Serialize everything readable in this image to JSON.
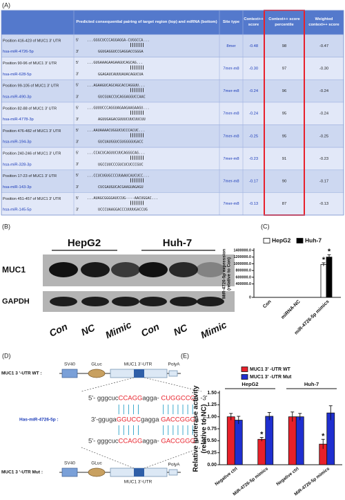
{
  "panel_labels": [
    "(A)",
    "(B)",
    "(C)",
    "(D)",
    "(E)"
  ],
  "table": {
    "header": [
      "Predicted consequential pairing of target region (top) and miRNA (bottom)",
      "Site type",
      "Context++ score",
      "Context++ score percentile",
      "Weighted context++ score"
    ],
    "prime5": "5'",
    "prime3": "3'",
    "rows": [
      {
        "target": "Position 416-423 of MUC1 3' UTR",
        "mirna": "hsa-miR-4726-5p",
        "target_seq": "...GGGCUCCCAGGAGGA-CUGGCCA...",
        "mirna_seq": "GGUGAGGUCCGAGGACCGGGA",
        "site_type": "8mer",
        "context_score": "-0.48",
        "percentile": 98,
        "weighted_score": "-0.47"
      },
      {
        "target": "Position 90-96 of MUC1 3' UTR",
        "mirna": "hsa-miR-628-5p",
        "target_seq": "...GUGAAAGAAGAAGUCAGCAG...",
        "mirna_seq": "GGAGAUCAUUUAUACAGUCUA",
        "site_type": "7mer-m8",
        "context_score": "-0.30",
        "percentile": 97,
        "weighted_score": "-0.30"
      },
      {
        "target": "Position 99-105 of MUC1 3' UTR",
        "mirna": "hsa-miR-490-3p",
        "target_seq": "...AGAAGUCAGCAGCACCAGGUU...",
        "mirna_seq": "GUCGUACCUCAGGAGGUCCAAC",
        "site_type": "7mer-m8",
        "context_score": "-0.24",
        "percentile": 96,
        "weighted_score": "-0.24"
      },
      {
        "target": "Position 82-88 of MUC1 3' UTR",
        "mirna": "hsa-miR-4778-3p",
        "target_seq": "...GUUUCCCAGGUAGAAGAAGAAGU...",
        "mirna_seq": "AGUUGAGACGUUUCUUCUUCUU",
        "site_type": "7mer-m8",
        "context_score": "-0.24",
        "percentile": 95,
        "weighted_score": "-0.24"
      },
      {
        "target": "Position 476-482 of MUC1 3' UTR",
        "mirna": "hsa-miR-194-3p",
        "target_seq": "...AAUAAAACUGGUCUCCCACUC...",
        "mirna_seq": "GUCUAUGGUCGUGGGGUGACC",
        "site_type": "7mer-m8",
        "context_score": "-0.25",
        "percentile": 95,
        "weighted_score": "-0.25"
      },
      {
        "target": "Position 240-246 of MUC1 3' UTR",
        "mirna": "hsa-miR-328-3p",
        "target_seq": "...CCACUCAGUUCUUCAGGGCAG...",
        "mirna_seq": "UGCCUUCCCGUCUCUCCCGUC",
        "site_type": "7mer-m8",
        "context_score": "-0.23",
        "percentile": 91,
        "weighted_score": "-0.23"
      },
      {
        "target": "Position 17-23 of MUC1 3' UTR",
        "mirna": "hsa-miR-143-3p",
        "target_seq": "...CCUCUGUGCCCUUAAUCAUCUCC...",
        "mirna_seq": "CUCGAUGUCACGAAGUAGAGU",
        "site_type": "7mer-m8",
        "context_score": "-0.17",
        "percentile": 90,
        "weighted_score": "-0.17"
      },
      {
        "target": "Position 451-457 of MUC1 3' UTR",
        "mirna": "hsa-miR-145-5p",
        "target_seq": "...AUAGCGGGGAUCCUG----AACUGGAC...",
        "mirna_seq": "UCCCUAAGGACCCUUUUGACCUG",
        "site_type": "7mer-m8",
        "context_score": "-0.13",
        "percentile": 87,
        "weighted_score": "-0.13"
      }
    ]
  },
  "blot": {
    "cell_lines": [
      "HepG2",
      "Huh-7"
    ],
    "proteins": [
      "MUC1",
      "GAPDH"
    ],
    "lanes": [
      "Con",
      "NC",
      "Mimic",
      "Con",
      "NC",
      "Mimic"
    ]
  },
  "chart_data": [
    {
      "type": "bar",
      "y_label": [
        "MiR-4726-5p expression",
        "(relative to Con)"
      ],
      "categories": [
        "Con",
        "miRNA-NC",
        "miR-4726-5p mimics"
      ],
      "series": [
        {
          "name": "HepG2",
          "color": "#ffffff",
          "values": [
            1,
            1.5,
            980000
          ],
          "errors": [
            0.1,
            0.3,
            50000
          ],
          "significance": [
            null,
            null,
            "*"
          ]
        },
        {
          "name": "Huh-7",
          "color": "#000000",
          "values": [
            1,
            2,
            1200000
          ],
          "errors": [
            0.1,
            0.3,
            70000
          ],
          "significance": [
            null,
            null,
            "*"
          ]
        }
      ],
      "ylim": [
        0,
        1400000
      ],
      "yticks": [
        0,
        {
          "value": 400000,
          "label": "400000.0"
        },
        {
          "value": 600000,
          "label": "600000.0"
        },
        {
          "value": 800000,
          "label": "800000.0"
        },
        {
          "value": 1000000,
          "label": "1000000.0"
        },
        {
          "value": 1200000,
          "label": "1200000.0"
        },
        {
          "value": 1400000,
          "label": "1400000.0"
        }
      ],
      "legend": "top"
    },
    {
      "type": "bar",
      "y_label": [
        "Relative luciferase activity",
        "(relative to NC)"
      ],
      "groups": [
        "HepG2",
        "Huh-7"
      ],
      "categories": [
        "Negative ctrl",
        "MiR-4726-5p mimics",
        "Negative ctrl",
        "MiR-4726-5p mimics"
      ],
      "series": [
        {
          "name": "MUC1 3' -UTR WT",
          "color": "#e8202a",
          "values": [
            1.0,
            0.53,
            1.0,
            0.43
          ],
          "errors": [
            0.07,
            0.04,
            0.1,
            0.1
          ],
          "significance": [
            null,
            "*",
            null,
            "*"
          ]
        },
        {
          "name": "MUC1 3' -UTR Mut",
          "color": "#1f2fd0",
          "values": [
            0.93,
            1.01,
            1.0,
            1.08
          ],
          "errors": [
            0.08,
            0.08,
            0.07,
            0.15
          ],
          "significance": [
            null,
            null,
            null,
            null
          ]
        }
      ],
      "ylim": [
        0,
        1.5
      ],
      "yticks": [
        {
          "value": 0,
          "label": "0.00"
        },
        {
          "value": 0.25,
          "label": "0.25"
        },
        {
          "value": 0.5,
          "label": "0.50"
        },
        {
          "value": 0.75,
          "label": "0.75"
        },
        {
          "value": 1,
          "label": "1.00"
        },
        {
          "value": 1.25,
          "label": "1.25"
        },
        {
          "value": 1.5,
          "label": "1.50"
        }
      ],
      "legend": "top"
    }
  ],
  "diagram": {
    "wt_label": "MUC1 3 '-UTR WT :",
    "mirna_label": "Has-miR-4726-5p :",
    "mut_label": "MUC1 3 '-UTR Mut :",
    "elements": [
      "SV40",
      "GLuc",
      "MUC1 3'-UTR",
      "PolyA"
    ],
    "wt_seq": [
      {
        "text": "5'- gggcuc",
        "color": "#333333"
      },
      {
        "text": "CCAGG",
        "color": "#e8202a"
      },
      {
        "text": "agga- ",
        "color": "#333333"
      },
      {
        "text": "CUGGCCC",
        "color": "#e8202a"
      },
      {
        "text": "a -3'",
        "color": "#333333"
      }
    ],
    "mirna_seq": [
      {
        "text": "3'-gguga",
        "color": "#333333"
      },
      {
        "text": "GGUCC",
        "color": "#e8202a"
      },
      {
        "text": "gagga ",
        "color": "#333333"
      },
      {
        "text": "GACCGGG",
        "color": "#e8202a"
      },
      {
        "text": "a -5'",
        "color": "#333333"
      }
    ],
    "mut_seq": [
      {
        "text": "5'- gggcuc",
        "color": "#333333"
      },
      {
        "text": "CCAGG",
        "color": "#e8202a"
      },
      {
        "text": "agga- ",
        "color": "#333333"
      },
      {
        "text": "GACCGGG",
        "color": "#e8202a"
      },
      {
        "text": "a -3'",
        "color": "#333333"
      }
    ]
  }
}
